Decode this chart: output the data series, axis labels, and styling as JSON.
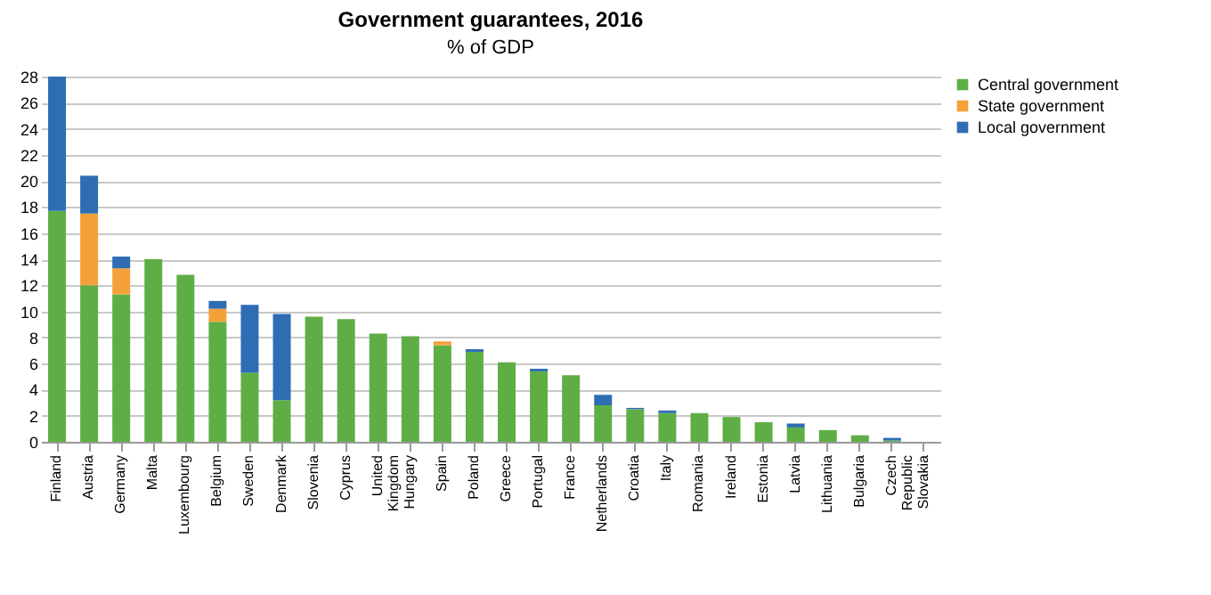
{
  "chart_data": {
    "type": "bar",
    "title": "Government guarantees, 2016",
    "subtitle": "% of GDP",
    "stacked": true,
    "categories": [
      "Finland",
      "Austria",
      "Germany",
      "Malta",
      "Luxembourg",
      "Belgium",
      "Sweden",
      "Denmark",
      "Slovenia",
      "Cyprus",
      "United Kingdom",
      "Hungary",
      "Spain",
      "Poland",
      "Greece",
      "Portugal",
      "France",
      "Netherlands",
      "Croatia",
      "Italy",
      "Romania",
      "Ireland",
      "Estonia",
      "Latvia",
      "Lithuania",
      "Bulgaria",
      "Czech Republic",
      "Slovakia"
    ],
    "series": [
      {
        "name": "Central government",
        "color": "#5fae45",
        "values": [
          17.7,
          12.0,
          11.3,
          14.0,
          12.8,
          9.2,
          5.3,
          3.2,
          9.6,
          9.4,
          8.3,
          8.1,
          7.4,
          6.9,
          6.1,
          5.4,
          5.1,
          2.8,
          2.5,
          2.2,
          2.2,
          1.9,
          1.5,
          1.1,
          0.9,
          0.5,
          0.1,
          0
        ]
      },
      {
        "name": "State government",
        "color": "#f5a13a",
        "values": [
          0,
          5.5,
          2.0,
          0,
          0,
          1.0,
          0,
          0,
          0,
          0,
          0,
          0,
          0.3,
          0,
          0,
          0,
          0,
          0,
          0,
          0,
          0,
          0,
          0,
          0,
          0,
          0,
          0,
          0
        ]
      },
      {
        "name": "Local government",
        "color": "#2e6db4",
        "values": [
          10.3,
          2.9,
          0.9,
          0,
          0,
          0.6,
          5.2,
          6.6,
          0,
          0,
          0,
          0,
          0,
          0.2,
          0,
          0.2,
          0,
          0.8,
          0.1,
          0.2,
          0,
          0,
          0,
          0.3,
          0,
          0,
          0.2,
          0
        ]
      }
    ],
    "ylim": [
      0,
      28
    ],
    "yticks": [
      0,
      2,
      4,
      6,
      8,
      10,
      12,
      14,
      16,
      18,
      20,
      22,
      24,
      26,
      28
    ],
    "grid": "y",
    "legend": "right"
  }
}
